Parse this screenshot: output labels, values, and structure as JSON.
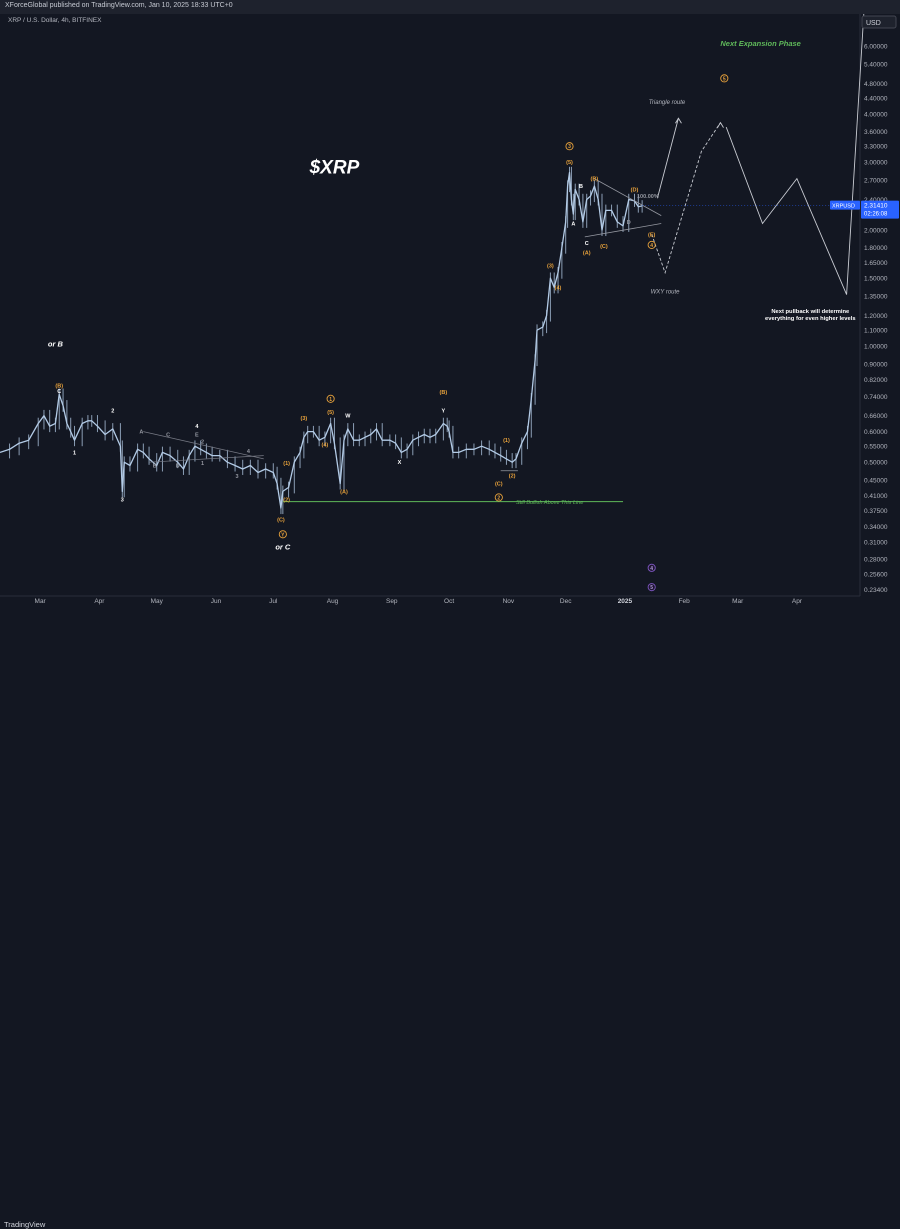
{
  "header": {
    "published": "XForceGlobal published on TradingView.com, Jan 10, 2025 18:33 UTC+0",
    "symbol_line": "XRP / U.S. Dollar, 4h, BITFINEX"
  },
  "footer": {
    "logo": "TradingView"
  },
  "colors": {
    "background": "#131722",
    "candle": "#b3cbe6",
    "wave_orange": "#e8a23b",
    "wave_white": "#ffffff",
    "wave_gray": "#9598a1",
    "support_green": "#5fb85a",
    "expansion_green": "#5fb85a",
    "axis_text": "#b2b5be",
    "price_badge": "#2962ff",
    "purple": "#7e57c2"
  },
  "chart_data": {
    "type": "line",
    "symbol": "XRP / U.S. Dollar",
    "timeframe": "4h",
    "exchange": "BITFINEX",
    "title": "$XRP",
    "y_scale": "log",
    "ylim": [
      0.2248,
      7.27
    ],
    "y_unit": "USD",
    "y_ticks": [
      "6.00000",
      "5.40000",
      "4.80000",
      "4.40000",
      "4.00000",
      "3.60000",
      "3.30000",
      "3.00000",
      "2.70000",
      "2.40000",
      "2.20000",
      "2.00000",
      "1.80000",
      "1.65000",
      "1.50000",
      "1.35000",
      "1.20000",
      "1.10000",
      "1.00000",
      "0.90000",
      "0.82000",
      "0.74000",
      "0.66000",
      "0.60000",
      "0.55000",
      "0.50000",
      "0.45000",
      "0.41000",
      "0.37500",
      "0.34000",
      "0.31000",
      "0.28000",
      "0.25600",
      "0.23400"
    ],
    "x_ticks": [
      "Mar",
      "Apr",
      "May",
      "Jun",
      "Jul",
      "Aug",
      "Sep",
      "Oct",
      "Nov",
      "Dec",
      "2025",
      "Feb",
      "Mar",
      "Apr"
    ],
    "x_tick_dates": [
      "2024-03-01",
      "2024-04-01",
      "2024-05-01",
      "2024-06-01",
      "2024-07-01",
      "2024-08-01",
      "2024-09-01",
      "2024-10-01",
      "2024-11-01",
      "2024-12-01",
      "2025-01-01",
      "2025-02-01",
      "2025-03-01",
      "2025-04-01"
    ],
    "x_range": [
      "2024-02-09",
      "2025-05-04"
    ],
    "current_price": {
      "label": "XRPUSD",
      "value": "2.31410",
      "countdown": "02:26:08"
    },
    "price_series": [
      [
        "2024-02-09",
        0.53
      ],
      [
        "2024-02-14",
        0.54
      ],
      [
        "2024-02-19",
        0.56
      ],
      [
        "2024-02-24",
        0.57
      ],
      [
        "2024-02-29",
        0.63
      ],
      [
        "2024-03-03",
        0.66
      ],
      [
        "2024-03-06",
        0.62
      ],
      [
        "2024-03-09",
        0.63
      ],
      [
        "2024-03-11",
        0.75
      ],
      [
        "2024-03-13",
        0.7
      ],
      [
        "2024-03-15",
        0.63
      ],
      [
        "2024-03-17",
        0.6
      ],
      [
        "2024-03-19",
        0.57
      ],
      [
        "2024-03-23",
        0.63
      ],
      [
        "2024-03-26",
        0.64
      ],
      [
        "2024-03-28",
        0.64
      ],
      [
        "2024-03-31",
        0.62
      ],
      [
        "2024-04-04",
        0.59
      ],
      [
        "2024-04-08",
        0.61
      ],
      [
        "2024-04-12",
        0.55
      ],
      [
        "2024-04-13",
        0.42
      ],
      [
        "2024-04-14",
        0.5
      ],
      [
        "2024-04-17",
        0.49
      ],
      [
        "2024-04-21",
        0.54
      ],
      [
        "2024-04-24",
        0.53
      ],
      [
        "2024-04-27",
        0.51
      ],
      [
        "2024-05-01",
        0.49
      ],
      [
        "2024-05-04",
        0.53
      ],
      [
        "2024-05-08",
        0.52
      ],
      [
        "2024-05-12",
        0.5
      ],
      [
        "2024-05-15",
        0.48
      ],
      [
        "2024-05-18",
        0.52
      ],
      [
        "2024-05-21",
        0.55
      ],
      [
        "2024-05-24",
        0.54
      ],
      [
        "2024-05-27",
        0.53
      ],
      [
        "2024-05-30",
        0.52
      ],
      [
        "2024-06-03",
        0.52
      ],
      [
        "2024-06-07",
        0.5
      ],
      [
        "2024-06-11",
        0.49
      ],
      [
        "2024-06-15",
        0.48
      ],
      [
        "2024-06-19",
        0.49
      ],
      [
        "2024-06-23",
        0.47
      ],
      [
        "2024-06-27",
        0.48
      ],
      [
        "2024-07-01",
        0.47
      ],
      [
        "2024-07-03",
        0.44
      ],
      [
        "2024-07-05",
        0.38
      ],
      [
        "2024-07-06",
        0.42
      ],
      [
        "2024-07-09",
        0.43
      ],
      [
        "2024-07-12",
        0.5
      ],
      [
        "2024-07-15",
        0.53
      ],
      [
        "2024-07-17",
        0.58
      ],
      [
        "2024-07-19",
        0.6
      ],
      [
        "2024-07-22",
        0.6
      ],
      [
        "2024-07-25",
        0.57
      ],
      [
        "2024-07-28",
        0.58
      ],
      [
        "2024-07-31",
        0.63
      ],
      [
        "2024-08-02",
        0.56
      ],
      [
        "2024-08-05",
        0.44
      ],
      [
        "2024-08-07",
        0.57
      ],
      [
        "2024-08-09",
        0.61
      ],
      [
        "2024-08-12",
        0.57
      ],
      [
        "2024-08-15",
        0.57
      ],
      [
        "2024-08-18",
        0.58
      ],
      [
        "2024-08-21",
        0.59
      ],
      [
        "2024-08-24",
        0.61
      ],
      [
        "2024-08-27",
        0.57
      ],
      [
        "2024-08-31",
        0.57
      ],
      [
        "2024-09-03",
        0.56
      ],
      [
        "2024-09-06",
        0.53
      ],
      [
        "2024-09-09",
        0.54
      ],
      [
        "2024-09-12",
        0.57
      ],
      [
        "2024-09-15",
        0.58
      ],
      [
        "2024-09-18",
        0.59
      ],
      [
        "2024-09-21",
        0.58
      ],
      [
        "2024-09-24",
        0.59
      ],
      [
        "2024-09-28",
        0.63
      ],
      [
        "2024-09-30",
        0.62
      ],
      [
        "2024-10-01",
        0.6
      ],
      [
        "2024-10-03",
        0.53
      ],
      [
        "2024-10-06",
        0.53
      ],
      [
        "2024-10-10",
        0.54
      ],
      [
        "2024-10-14",
        0.54
      ],
      [
        "2024-10-18",
        0.55
      ],
      [
        "2024-10-22",
        0.54
      ],
      [
        "2024-10-25",
        0.53
      ],
      [
        "2024-10-28",
        0.52
      ],
      [
        "2024-10-31",
        0.51
      ],
      [
        "2024-11-03",
        0.5
      ],
      [
        "2024-11-05",
        0.51
      ],
      [
        "2024-11-08",
        0.56
      ],
      [
        "2024-11-11",
        0.6
      ],
      [
        "2024-11-13",
        0.73
      ],
      [
        "2024-11-15",
        0.92
      ],
      [
        "2024-11-16",
        1.1
      ],
      [
        "2024-11-19",
        1.12
      ],
      [
        "2024-11-21",
        1.2
      ],
      [
        "2024-11-23",
        1.5
      ],
      [
        "2024-11-25",
        1.42
      ],
      [
        "2024-11-27",
        1.55
      ],
      [
        "2024-11-29",
        1.8
      ],
      [
        "2024-12-01",
        2.1
      ],
      [
        "2024-12-02",
        2.6
      ],
      [
        "2024-12-03",
        2.82
      ],
      [
        "2024-12-04",
        2.4
      ],
      [
        "2024-12-05",
        2.2
      ],
      [
        "2024-12-06",
        2.55
      ],
      [
        "2024-12-08",
        2.4
      ],
      [
        "2024-12-10",
        2.1
      ],
      [
        "2024-12-12",
        2.4
      ],
      [
        "2024-12-14",
        2.45
      ],
      [
        "2024-12-16",
        2.6
      ],
      [
        "2024-12-18",
        2.4
      ],
      [
        "2024-12-20",
        2.0
      ],
      [
        "2024-12-22",
        2.25
      ],
      [
        "2024-12-25",
        2.25
      ],
      [
        "2024-12-28",
        2.1
      ],
      [
        "2024-12-31",
        2.05
      ],
      [
        "2025-01-03",
        2.4
      ],
      [
        "2025-01-06",
        2.38
      ],
      [
        "2025-01-08",
        2.3
      ],
      [
        "2025-01-10",
        2.31
      ]
    ],
    "support_line": {
      "price": 0.395,
      "from": "2024-07-06",
      "to": "2024-12-31",
      "label": "Still Bullish Above This Line"
    },
    "projections": {
      "triangle_route": {
        "label": "Triangle route",
        "points": [
          [
            "2025-01-18",
            2.42
          ],
          [
            "2025-01-29",
            3.9
          ]
        ]
      },
      "wxy_route": {
        "label": "WXY route",
        "points": [
          [
            "2025-01-15",
            1.95
          ],
          [
            "2025-01-22",
            1.55
          ],
          [
            "2025-02-10",
            3.2
          ],
          [
            "2025-02-20",
            3.8
          ]
        ]
      },
      "next_expansion": {
        "label": "Next Expansion Phase",
        "points": [
          [
            "2025-02-23",
            3.7
          ],
          [
            "2025-03-14",
            2.08
          ],
          [
            "2025-04-01",
            2.72
          ],
          [
            "2025-04-27",
            1.36
          ],
          [
            "2025-05-06",
            7.27
          ]
        ]
      }
    },
    "annotations": [
      {
        "text": "$XRP",
        "kind": "title"
      },
      {
        "text": "Next pullback will determine\neverything for even higher levels",
        "kind": "note"
      }
    ],
    "wave_labels": [
      {
        "t": "or B",
        "d": "2024-03-09",
        "p": 1.01,
        "c": "white",
        "s": "big"
      },
      {
        "t": "(B)",
        "d": "2024-03-11",
        "p": 0.79,
        "c": "orange"
      },
      {
        "t": "C",
        "d": "2024-03-11",
        "p": 0.765,
        "c": "white"
      },
      {
        "t": "1",
        "d": "2024-03-19",
        "p": 0.53,
        "c": "white"
      },
      {
        "t": "2",
        "d": "2024-04-08",
        "p": 0.68,
        "c": "white"
      },
      {
        "t": "3",
        "d": "2024-04-13",
        "p": 0.4,
        "c": "white"
      },
      {
        "t": "A",
        "d": "2024-04-23",
        "p": 0.6,
        "c": "gray"
      },
      {
        "t": "B",
        "d": "2024-04-30",
        "p": 0.49,
        "c": "gray"
      },
      {
        "t": "C",
        "d": "2024-05-07",
        "p": 0.59,
        "c": "gray"
      },
      {
        "t": "D",
        "d": "2024-05-12",
        "p": 0.49,
        "c": "gray"
      },
      {
        "t": "E",
        "d": "2024-05-22",
        "p": 0.59,
        "c": "gray"
      },
      {
        "t": "4",
        "d": "2024-05-22",
        "p": 0.62,
        "c": "white"
      },
      {
        "t": "2",
        "d": "2024-05-25",
        "p": 0.566,
        "c": "gray"
      },
      {
        "t": "1",
        "d": "2024-05-25",
        "p": 0.498,
        "c": "gray"
      },
      {
        "t": "3",
        "d": "2024-06-12",
        "p": 0.46,
        "c": "gray"
      },
      {
        "t": "4",
        "d": "2024-06-18",
        "p": 0.535,
        "c": "gray"
      },
      {
        "t": "(1)",
        "d": "2024-07-08",
        "p": 0.498,
        "c": "orange"
      },
      {
        "t": "(2)",
        "d": "2024-07-08",
        "p": 0.4,
        "c": "orange"
      },
      {
        "t": "(C)",
        "d": "2024-07-05",
        "p": 0.355,
        "c": "orange"
      },
      {
        "t": "Y",
        "d": "2024-07-06",
        "p": 0.325,
        "c": "circle"
      },
      {
        "t": "or C",
        "d": "2024-07-06",
        "p": 0.3,
        "c": "white",
        "s": "big"
      },
      {
        "t": "(3)",
        "d": "2024-07-17",
        "p": 0.65,
        "c": "orange"
      },
      {
        "t": "(4)",
        "d": "2024-07-28",
        "p": 0.555,
        "c": "orange"
      },
      {
        "t": "(5)",
        "d": "2024-07-31",
        "p": 0.675,
        "c": "orange"
      },
      {
        "t": "1",
        "d": "2024-07-31",
        "p": 0.73,
        "c": "circle"
      },
      {
        "t": "W",
        "d": "2024-08-09",
        "p": 0.66,
        "c": "white"
      },
      {
        "t": "(A)",
        "d": "2024-08-07",
        "p": 0.42,
        "c": "orange"
      },
      {
        "t": "X",
        "d": "2024-09-05",
        "p": 0.5,
        "c": "white"
      },
      {
        "t": "(B)",
        "d": "2024-09-28",
        "p": 0.76,
        "c": "orange"
      },
      {
        "t": "Y",
        "d": "2024-09-28",
        "p": 0.68,
        "c": "white"
      },
      {
        "t": "(1)",
        "d": "2024-10-31",
        "p": 0.57,
        "c": "orange"
      },
      {
        "t": "(2)",
        "d": "2024-11-03",
        "p": 0.462,
        "c": "orange"
      },
      {
        "t": "(C)",
        "d": "2024-10-27",
        "p": 0.44,
        "c": "orange"
      },
      {
        "t": "2",
        "d": "2024-10-27",
        "p": 0.405,
        "c": "circle"
      },
      {
        "t": "(3)",
        "d": "2024-11-23",
        "p": 1.62,
        "c": "orange"
      },
      {
        "t": "(4)",
        "d": "2024-11-27",
        "p": 1.42,
        "c": "orange"
      },
      {
        "t": "3",
        "d": "2024-12-03",
        "p": 3.3,
        "c": "circle"
      },
      {
        "t": "(5)",
        "d": "2024-12-03",
        "p": 3.0,
        "c": "orange"
      },
      {
        "t": "B",
        "d": "2024-12-09",
        "p": 2.6,
        "c": "white"
      },
      {
        "t": "(B)",
        "d": "2024-12-16",
        "p": 2.72,
        "c": "orange"
      },
      {
        "t": "A",
        "d": "2024-12-05",
        "p": 2.08,
        "c": "white"
      },
      {
        "t": "C",
        "d": "2024-12-12",
        "p": 1.85,
        "c": "white"
      },
      {
        "t": "(A)",
        "d": "2024-12-12",
        "p": 1.75,
        "c": "orange"
      },
      {
        "t": "(C)",
        "d": "2024-12-21",
        "p": 1.82,
        "c": "orange"
      },
      {
        "t": "(D)",
        "d": "2025-01-06",
        "p": 2.55,
        "c": "orange"
      },
      {
        "t": "(E)",
        "d": "2025-01-15",
        "p": 1.95,
        "c": "orange"
      },
      {
        "t": "4",
        "d": "2025-01-15",
        "p": 1.83,
        "c": "circle"
      },
      {
        "t": "5",
        "d": "2025-02-22",
        "p": 4.95,
        "c": "circle"
      },
      {
        "t": "D",
        "d": "2025-01-03",
        "p": 2.1,
        "c": "gray"
      },
      {
        "t": "100.00%",
        "d": "2025-01-13",
        "p": 2.45,
        "c": "gray"
      }
    ],
    "bottom_markers": [
      {
        "t": "4",
        "d": "2025-01-15",
        "p": 0.266,
        "c": "purple"
      },
      {
        "t": "5",
        "d": "2025-01-15",
        "p": 0.237,
        "c": "purple"
      }
    ]
  }
}
